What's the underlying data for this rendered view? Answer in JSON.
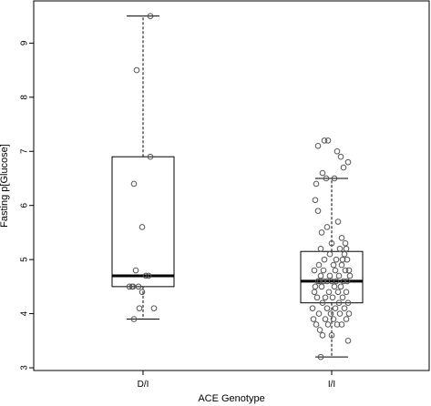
{
  "chart_data": {
    "type": "box",
    "title": "",
    "xlabel": "ACE Genotype",
    "ylabel": "Fasting p[Glucose]",
    "ylim": [
      2.95,
      9.78
    ],
    "yticks": [
      3,
      4,
      5,
      6,
      7,
      8,
      9
    ],
    "grid": false,
    "categories": [
      "D/I",
      "I/I"
    ],
    "boxes": [
      {
        "category": "D/I",
        "whisker_low": 3.9,
        "q1": 4.5,
        "median": 4.7,
        "q3": 6.9,
        "whisker_high": 9.5,
        "points": [
          {
            "x": -0.15,
            "y": 4.5
          },
          {
            "x": -0.12,
            "y": 4.5
          },
          {
            "x": -0.11,
            "y": 4.5
          },
          {
            "x": -0.1,
            "y": 3.9
          },
          {
            "x": -0.1,
            "y": 6.4
          },
          {
            "x": -0.08,
            "y": 4.8
          },
          {
            "x": -0.07,
            "y": 8.5
          },
          {
            "x": -0.05,
            "y": 4.5
          },
          {
            "x": -0.04,
            "y": 4.1
          },
          {
            "x": -0.01,
            "y": 4.4
          },
          {
            "x": -0.01,
            "y": 5.6
          },
          {
            "x": 0.03,
            "y": 4.7
          },
          {
            "x": 0.06,
            "y": 4.7
          },
          {
            "x": 0.08,
            "y": 6.9
          },
          {
            "x": 0.08,
            "y": 9.5
          },
          {
            "x": 0.12,
            "y": 4.1
          }
        ]
      },
      {
        "category": "I/I",
        "whisker_low": 3.2,
        "q1": 4.2,
        "median": 4.6,
        "q3": 5.15,
        "whisker_high": 6.5,
        "points": [
          {
            "x": -0.21,
            "y": 4.1
          },
          {
            "x": -0.2,
            "y": 3.9
          },
          {
            "x": -0.19,
            "y": 4.4
          },
          {
            "x": -0.19,
            "y": 4.8
          },
          {
            "x": -0.18,
            "y": 6.1
          },
          {
            "x": -0.17,
            "y": 6.4
          },
          {
            "x": -0.17,
            "y": 3.8
          },
          {
            "x": -0.16,
            "y": 4.3
          },
          {
            "x": -0.15,
            "y": 4.6
          },
          {
            "x": -0.15,
            "y": 5.9
          },
          {
            "x": -0.15,
            "y": 7.1
          },
          {
            "x": -0.14,
            "y": 4.9
          },
          {
            "x": -0.14,
            "y": 4.0
          },
          {
            "x": -0.13,
            "y": 3.7
          },
          {
            "x": -0.12,
            "y": 4.7
          },
          {
            "x": -0.12,
            "y": 5.2
          },
          {
            "x": -0.12,
            "y": 3.2
          },
          {
            "x": -0.11,
            "y": 4.5
          },
          {
            "x": -0.11,
            "y": 5.5
          },
          {
            "x": -0.1,
            "y": 6.6
          },
          {
            "x": -0.1,
            "y": 4.2
          },
          {
            "x": -0.1,
            "y": 3.6
          },
          {
            "x": -0.09,
            "y": 4.8
          },
          {
            "x": -0.08,
            "y": 7.2
          },
          {
            "x": -0.08,
            "y": 5.0
          },
          {
            "x": -0.07,
            "y": 4.3
          },
          {
            "x": -0.07,
            "y": 3.9
          },
          {
            "x": -0.06,
            "y": 6.5
          },
          {
            "x": -0.05,
            "y": 4.6
          },
          {
            "x": -0.05,
            "y": 4.1
          },
          {
            "x": -0.05,
            "y": 5.6
          },
          {
            "x": -0.04,
            "y": 3.8
          },
          {
            "x": -0.04,
            "y": 7.2
          },
          {
            "x": -0.03,
            "y": 4.4
          },
          {
            "x": -0.02,
            "y": 4.7
          },
          {
            "x": -0.02,
            "y": 5.1
          },
          {
            "x": -0.01,
            "y": 4.0
          },
          {
            "x": 0.0,
            "y": 4.6
          },
          {
            "x": 0.0,
            "y": 3.6
          },
          {
            "x": 0.0,
            "y": 5.3
          },
          {
            "x": 0.01,
            "y": 4.3
          },
          {
            "x": 0.02,
            "y": 4.9
          },
          {
            "x": 0.02,
            "y": 3.9
          },
          {
            "x": 0.03,
            "y": 6.5
          },
          {
            "x": 0.03,
            "y": 4.5
          },
          {
            "x": 0.04,
            "y": 4.1
          },
          {
            "x": 0.05,
            "y": 5.0
          },
          {
            "x": 0.05,
            "y": 4.6
          },
          {
            "x": 0.06,
            "y": 7.0
          },
          {
            "x": 0.06,
            "y": 3.8
          },
          {
            "x": 0.07,
            "y": 4.4
          },
          {
            "x": 0.07,
            "y": 5.7
          },
          {
            "x": 0.08,
            "y": 4.2
          },
          {
            "x": 0.08,
            "y": 4.7
          },
          {
            "x": 0.09,
            "y": 4.0
          },
          {
            "x": 0.09,
            "y": 5.2
          },
          {
            "x": 0.1,
            "y": 6.9
          },
          {
            "x": 0.1,
            "y": 4.5
          },
          {
            "x": 0.11,
            "y": 3.8
          },
          {
            "x": 0.11,
            "y": 4.9
          },
          {
            "x": 0.12,
            "y": 4.3
          },
          {
            "x": 0.12,
            "y": 5.0
          },
          {
            "x": 0.13,
            "y": 6.7
          },
          {
            "x": 0.13,
            "y": 4.6
          },
          {
            "x": 0.14,
            "y": 5.1
          },
          {
            "x": 0.14,
            "y": 4.1
          },
          {
            "x": 0.15,
            "y": 5.3
          },
          {
            "x": 0.15,
            "y": 4.8
          },
          {
            "x": 0.16,
            "y": 4.4
          },
          {
            "x": 0.16,
            "y": 3.9
          },
          {
            "x": 0.17,
            "y": 5.0
          },
          {
            "x": 0.17,
            "y": 4.6
          },
          {
            "x": 0.18,
            "y": 6.8
          },
          {
            "x": 0.18,
            "y": 4.2
          },
          {
            "x": 0.18,
            "y": 3.5
          },
          {
            "x": 0.19,
            "y": 4.8
          },
          {
            "x": 0.19,
            "y": 4.0
          },
          {
            "x": 0.2,
            "y": 4.7
          },
          {
            "x": 0.16,
            "y": 5.2
          },
          {
            "x": -0.09,
            "y": 4.6
          },
          {
            "x": 0.04,
            "y": 4.8
          },
          {
            "x": -0.18,
            "y": 4.5
          },
          {
            "x": 0.11,
            "y": 5.4
          },
          {
            "x": -0.13,
            "y": 4.6
          }
        ]
      }
    ],
    "colors": {
      "box_fill": "#ffffff",
      "line": "#000000",
      "point_stroke": "#555555"
    }
  }
}
